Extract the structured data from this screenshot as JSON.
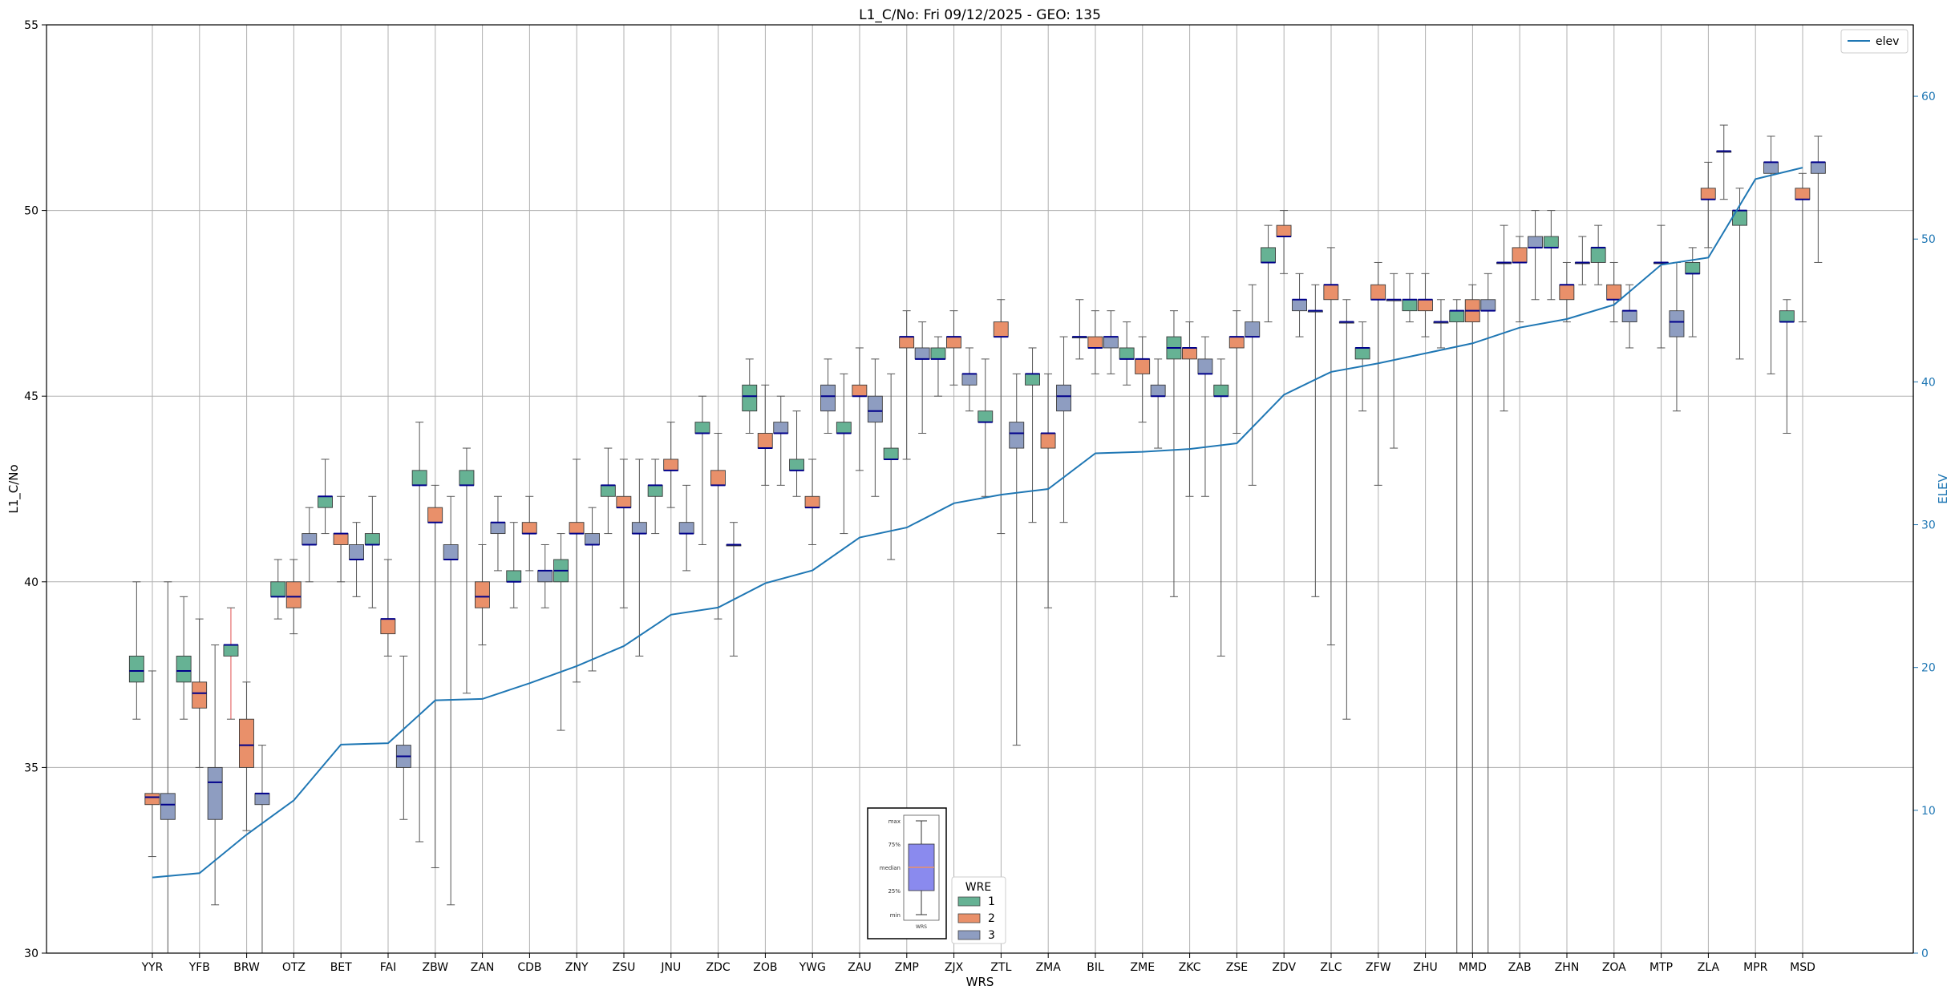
{
  "chart_data": {
    "type": "boxplot",
    "title": "L1_C/No: Fri 09/12/2025 - GEO: 135",
    "xlabel": "WRS",
    "ylabel": "L1_C/No",
    "ylabel_right": "ELEV",
    "ylim": [
      30,
      55
    ],
    "ylim_right": [
      0,
      65
    ],
    "yticks": [
      30,
      35,
      40,
      45,
      50,
      55
    ],
    "yticks_right": [
      0,
      10,
      20,
      30,
      40,
      50,
      60
    ],
    "grid": true,
    "categories": [
      "YYR",
      "YFB",
      "BRW",
      "OTZ",
      "BET",
      "FAI",
      "ZBW",
      "ZAN",
      "CDB",
      "ZNY",
      "ZSU",
      "JNU",
      "ZDC",
      "ZOB",
      "YWG",
      "ZAU",
      "ZMP",
      "ZJX",
      "ZTL",
      "ZMA",
      "BIL",
      "ZME",
      "ZKC",
      "ZSE",
      "ZDV",
      "ZLC",
      "ZFW",
      "ZHU",
      "MMD",
      "ZAB",
      "ZHN",
      "ZOA",
      "MTP",
      "ZLA",
      "MPR",
      "MSD"
    ],
    "wre_colors": {
      "1": "#66b294",
      "2": "#e9906a",
      "3": "#8e9dc1"
    },
    "median_color": "#00008b",
    "elev_color": "#1f77b4",
    "boxes": [
      {
        "site": "YYR",
        "wre": "1",
        "min": 36.3,
        "q1": 37.3,
        "median": 37.6,
        "q3": 38.0,
        "max": 40.0
      },
      {
        "site": "YYR",
        "wre": "2",
        "min": 32.6,
        "q1": 34.0,
        "median": 34.2,
        "q3": 34.3,
        "max": 37.6
      },
      {
        "site": "YYR",
        "wre": "3",
        "min": 30.0,
        "q1": 33.6,
        "median": 34.0,
        "q3": 34.3,
        "max": 40.0
      },
      {
        "site": "YFB",
        "wre": "1",
        "min": 36.3,
        "q1": 37.3,
        "median": 37.6,
        "q3": 38.0,
        "max": 39.6
      },
      {
        "site": "YFB",
        "wre": "2",
        "min": 35.0,
        "q1": 36.6,
        "median": 37.0,
        "q3": 37.3,
        "max": 39.0
      },
      {
        "site": "YFB",
        "wre": "3",
        "min": 31.3,
        "q1": 33.6,
        "median": 34.6,
        "q3": 35.0,
        "max": 38.3
      },
      {
        "site": "BRW",
        "wre": "1",
        "min": 36.3,
        "q1": 38.0,
        "median": 38.3,
        "q3": 38.3,
        "max": 39.3
      },
      {
        "site": "BRW",
        "wre": "2",
        "min": 33.3,
        "q1": 35.0,
        "median": 35.6,
        "q3": 36.3,
        "max": 37.3
      },
      {
        "site": "BRW",
        "wre": "3",
        "min": 30.0,
        "q1": 34.0,
        "median": 34.3,
        "q3": 34.3,
        "max": 35.6
      },
      {
        "site": "OTZ",
        "wre": "1",
        "min": 39.0,
        "q1": 39.6,
        "median": 39.6,
        "q3": 40.0,
        "max": 40.6
      },
      {
        "site": "OTZ",
        "wre": "2",
        "min": 38.6,
        "q1": 39.3,
        "median": 39.6,
        "q3": 40.0,
        "max": 40.6
      },
      {
        "site": "OTZ",
        "wre": "3",
        "min": 40.0,
        "q1": 41.0,
        "median": 41.0,
        "q3": 41.3,
        "max": 42.0
      },
      {
        "site": "BET",
        "wre": "1",
        "min": 41.3,
        "q1": 42.0,
        "median": 42.3,
        "q3": 42.3,
        "max": 43.3
      },
      {
        "site": "BET",
        "wre": "2",
        "min": 40.0,
        "q1": 41.0,
        "median": 41.3,
        "q3": 41.3,
        "max": 42.3
      },
      {
        "site": "BET",
        "wre": "3",
        "min": 39.6,
        "q1": 40.6,
        "median": 40.6,
        "q3": 41.0,
        "max": 41.6
      },
      {
        "site": "FAI",
        "wre": "1",
        "min": 39.3,
        "q1": 41.0,
        "median": 41.0,
        "q3": 41.3,
        "max": 42.3
      },
      {
        "site": "FAI",
        "wre": "2",
        "min": 38.0,
        "q1": 38.6,
        "median": 39.0,
        "q3": 39.0,
        "max": 40.6
      },
      {
        "site": "FAI",
        "wre": "3",
        "min": 33.6,
        "q1": 35.0,
        "median": 35.3,
        "q3": 35.6,
        "max": 38.0
      },
      {
        "site": "ZBW",
        "wre": "1",
        "min": 33.0,
        "q1": 42.6,
        "median": 42.6,
        "q3": 43.0,
        "max": 44.3
      },
      {
        "site": "ZBW",
        "wre": "2",
        "min": 32.3,
        "q1": 41.6,
        "median": 41.6,
        "q3": 42.0,
        "max": 42.6
      },
      {
        "site": "ZBW",
        "wre": "3",
        "min": 31.3,
        "q1": 40.6,
        "median": 40.6,
        "q3": 41.0,
        "max": 42.3
      },
      {
        "site": "ZAN",
        "wre": "1",
        "min": 37.0,
        "q1": 42.6,
        "median": 42.6,
        "q3": 43.0,
        "max": 43.6
      },
      {
        "site": "ZAN",
        "wre": "2",
        "min": 38.3,
        "q1": 39.3,
        "median": 39.6,
        "q3": 40.0,
        "max": 41.0
      },
      {
        "site": "ZAN",
        "wre": "3",
        "min": 40.3,
        "q1": 41.3,
        "median": 41.6,
        "q3": 41.6,
        "max": 42.3
      },
      {
        "site": "CDB",
        "wre": "1",
        "min": 39.3,
        "q1": 40.0,
        "median": 40.0,
        "q3": 40.3,
        "max": 41.6
      },
      {
        "site": "CDB",
        "wre": "2",
        "min": 40.3,
        "q1": 41.3,
        "median": 41.3,
        "q3": 41.6,
        "max": 42.3
      },
      {
        "site": "CDB",
        "wre": "3",
        "min": 39.3,
        "q1": 40.0,
        "median": 40.3,
        "q3": 40.3,
        "max": 41.0
      },
      {
        "site": "ZNY",
        "wre": "1",
        "min": 36.0,
        "q1": 40.0,
        "median": 40.3,
        "q3": 40.6,
        "max": 41.3
      },
      {
        "site": "ZNY",
        "wre": "2",
        "min": 37.3,
        "q1": 41.3,
        "median": 41.3,
        "q3": 41.6,
        "max": 43.3
      },
      {
        "site": "ZNY",
        "wre": "3",
        "min": 37.6,
        "q1": 41.0,
        "median": 41.0,
        "q3": 41.3,
        "max": 42.0
      },
      {
        "site": "ZSU",
        "wre": "1",
        "min": 41.3,
        "q1": 42.3,
        "median": 42.6,
        "q3": 42.6,
        "max": 43.6
      },
      {
        "site": "ZSU",
        "wre": "2",
        "min": 39.3,
        "q1": 42.0,
        "median": 42.0,
        "q3": 42.3,
        "max": 43.3
      },
      {
        "site": "ZSU",
        "wre": "3",
        "min": 38.0,
        "q1": 41.3,
        "median": 41.3,
        "q3": 41.6,
        "max": 43.3
      },
      {
        "site": "JNU",
        "wre": "1",
        "min": 41.3,
        "q1": 42.3,
        "median": 42.6,
        "q3": 42.6,
        "max": 43.3
      },
      {
        "site": "JNU",
        "wre": "2",
        "min": 42.0,
        "q1": 43.0,
        "median": 43.0,
        "q3": 43.3,
        "max": 44.3
      },
      {
        "site": "JNU",
        "wre": "3",
        "min": 40.3,
        "q1": 41.3,
        "median": 41.3,
        "q3": 41.6,
        "max": 42.6
      },
      {
        "site": "ZDC",
        "wre": "1",
        "min": 41.0,
        "q1": 44.0,
        "median": 44.0,
        "q3": 44.3,
        "max": 45.0
      },
      {
        "site": "ZDC",
        "wre": "2",
        "min": 39.0,
        "q1": 42.6,
        "median": 42.6,
        "q3": 43.0,
        "max": 44.0
      },
      {
        "site": "ZDC",
        "wre": "3",
        "min": 38.0,
        "q1": 41.0,
        "median": 41.0,
        "q3": 41.0,
        "max": 41.6
      },
      {
        "site": "ZOB",
        "wre": "1",
        "min": 44.0,
        "q1": 44.6,
        "median": 45.0,
        "q3": 45.3,
        "max": 46.0
      },
      {
        "site": "ZOB",
        "wre": "2",
        "min": 42.6,
        "q1": 43.6,
        "median": 43.6,
        "q3": 44.0,
        "max": 45.3
      },
      {
        "site": "ZOB",
        "wre": "3",
        "min": 42.6,
        "q1": 44.0,
        "median": 44.0,
        "q3": 44.3,
        "max": 45.0
      },
      {
        "site": "YWG",
        "wre": "1",
        "min": 42.3,
        "q1": 43.0,
        "median": 43.0,
        "q3": 43.3,
        "max": 44.6
      },
      {
        "site": "YWG",
        "wre": "2",
        "min": 41.0,
        "q1": 42.0,
        "median": 42.0,
        "q3": 42.3,
        "max": 43.3
      },
      {
        "site": "YWG",
        "wre": "3",
        "min": 44.0,
        "q1": 44.6,
        "median": 45.0,
        "q3": 45.3,
        "max": 46.0
      },
      {
        "site": "ZAU",
        "wre": "1",
        "min": 41.3,
        "q1": 44.0,
        "median": 44.0,
        "q3": 44.3,
        "max": 45.6
      },
      {
        "site": "ZAU",
        "wre": "2",
        "min": 43.0,
        "q1": 45.0,
        "median": 45.0,
        "q3": 45.3,
        "max": 46.3
      },
      {
        "site": "ZAU",
        "wre": "3",
        "min": 42.3,
        "q1": 44.3,
        "median": 44.6,
        "q3": 45.0,
        "max": 46.0
      },
      {
        "site": "ZMP",
        "wre": "1",
        "min": 40.6,
        "q1": 43.3,
        "median": 43.3,
        "q3": 43.6,
        "max": 45.6
      },
      {
        "site": "ZMP",
        "wre": "2",
        "min": 43.3,
        "q1": 46.3,
        "median": 46.6,
        "q3": 46.6,
        "max": 47.3
      },
      {
        "site": "ZMP",
        "wre": "3",
        "min": 44.0,
        "q1": 46.0,
        "median": 46.0,
        "q3": 46.3,
        "max": 47.0
      },
      {
        "site": "ZJX",
        "wre": "1",
        "min": 45.0,
        "q1": 46.0,
        "median": 46.0,
        "q3": 46.3,
        "max": 46.6
      },
      {
        "site": "ZJX",
        "wre": "2",
        "min": 45.3,
        "q1": 46.3,
        "median": 46.6,
        "q3": 46.6,
        "max": 47.3
      },
      {
        "site": "ZJX",
        "wre": "3",
        "min": 44.6,
        "q1": 45.3,
        "median": 45.6,
        "q3": 45.6,
        "max": 46.3
      },
      {
        "site": "ZTL",
        "wre": "1",
        "min": 42.3,
        "q1": 44.3,
        "median": 44.3,
        "q3": 44.6,
        "max": 46.0
      },
      {
        "site": "ZTL",
        "wre": "2",
        "min": 41.3,
        "q1": 46.6,
        "median": 46.6,
        "q3": 47.0,
        "max": 47.6
      },
      {
        "site": "ZTL",
        "wre": "3",
        "min": 35.6,
        "q1": 43.6,
        "median": 44.0,
        "q3": 44.3,
        "max": 45.6
      },
      {
        "site": "ZMA",
        "wre": "1",
        "min": 41.6,
        "q1": 45.3,
        "median": 45.6,
        "q3": 45.6,
        "max": 46.3
      },
      {
        "site": "ZMA",
        "wre": "2",
        "min": 39.3,
        "q1": 43.6,
        "median": 44.0,
        "q3": 44.0,
        "max": 45.6
      },
      {
        "site": "ZMA",
        "wre": "3",
        "min": 41.6,
        "q1": 44.6,
        "median": 45.0,
        "q3": 45.3,
        "max": 46.6
      },
      {
        "site": "BIL",
        "wre": "1",
        "min": 46.0,
        "q1": 46.6,
        "median": 46.6,
        "q3": 46.6,
        "max": 47.6
      },
      {
        "site": "BIL",
        "wre": "2",
        "min": 45.6,
        "q1": 46.3,
        "median": 46.3,
        "q3": 46.6,
        "max": 47.3
      },
      {
        "site": "BIL",
        "wre": "3",
        "min": 45.6,
        "q1": 46.3,
        "median": 46.6,
        "q3": 46.6,
        "max": 47.3
      },
      {
        "site": "ZME",
        "wre": "1",
        "min": 45.3,
        "q1": 46.0,
        "median": 46.0,
        "q3": 46.3,
        "max": 47.0
      },
      {
        "site": "ZME",
        "wre": "2",
        "min": 44.3,
        "q1": 45.6,
        "median": 46.0,
        "q3": 46.0,
        "max": 46.6
      },
      {
        "site": "ZME",
        "wre": "3",
        "min": 43.6,
        "q1": 45.0,
        "median": 45.0,
        "q3": 45.3,
        "max": 46.0
      },
      {
        "site": "ZKC",
        "wre": "1",
        "min": 39.6,
        "q1": 46.0,
        "median": 46.3,
        "q3": 46.6,
        "max": 47.3
      },
      {
        "site": "ZKC",
        "wre": "2",
        "min": 42.3,
        "q1": 46.0,
        "median": 46.3,
        "q3": 46.3,
        "max": 47.0
      },
      {
        "site": "ZKC",
        "wre": "3",
        "min": 42.3,
        "q1": 45.6,
        "median": 45.6,
        "q3": 46.0,
        "max": 46.6
      },
      {
        "site": "ZSE",
        "wre": "1",
        "min": 38.0,
        "q1": 45.0,
        "median": 45.0,
        "q3": 45.3,
        "max": 46.0
      },
      {
        "site": "ZSE",
        "wre": "2",
        "min": 44.0,
        "q1": 46.3,
        "median": 46.6,
        "q3": 46.6,
        "max": 47.3
      },
      {
        "site": "ZSE",
        "wre": "3",
        "min": 42.6,
        "q1": 46.6,
        "median": 46.6,
        "q3": 47.0,
        "max": 48.0
      },
      {
        "site": "ZDV",
        "wre": "1",
        "min": 47.0,
        "q1": 48.6,
        "median": 48.6,
        "q3": 49.0,
        "max": 49.6
      },
      {
        "site": "ZDV",
        "wre": "2",
        "min": 48.3,
        "q1": 49.3,
        "median": 49.3,
        "q3": 49.6,
        "max": 50.0
      },
      {
        "site": "ZDV",
        "wre": "3",
        "min": 46.6,
        "q1": 47.3,
        "median": 47.6,
        "q3": 47.6,
        "max": 48.3
      },
      {
        "site": "ZLC",
        "wre": "1",
        "min": 39.6,
        "q1": 47.3,
        "median": 47.3,
        "q3": 47.3,
        "max": 48.0
      },
      {
        "site": "ZLC",
        "wre": "2",
        "min": 38.3,
        "q1": 47.6,
        "median": 48.0,
        "q3": 48.0,
        "max": 49.0
      },
      {
        "site": "ZLC",
        "wre": "3",
        "min": 36.3,
        "q1": 47.0,
        "median": 47.0,
        "q3": 47.0,
        "max": 47.6
      },
      {
        "site": "ZFW",
        "wre": "1",
        "min": 44.6,
        "q1": 46.0,
        "median": 46.3,
        "q3": 46.3,
        "max": 47.0
      },
      {
        "site": "ZFW",
        "wre": "2",
        "min": 42.6,
        "q1": 47.6,
        "median": 47.6,
        "q3": 48.0,
        "max": 48.6
      },
      {
        "site": "ZFW",
        "wre": "3",
        "min": 43.6,
        "q1": 47.6,
        "median": 47.6,
        "q3": 47.6,
        "max": 48.3
      },
      {
        "site": "ZHU",
        "wre": "1",
        "min": 47.0,
        "q1": 47.3,
        "median": 47.6,
        "q3": 47.6,
        "max": 48.3
      },
      {
        "site": "ZHU",
        "wre": "2",
        "min": 46.6,
        "q1": 47.3,
        "median": 47.6,
        "q3": 47.6,
        "max": 48.3
      },
      {
        "site": "ZHU",
        "wre": "3",
        "min": 46.3,
        "q1": 47.0,
        "median": 47.0,
        "q3": 47.0,
        "max": 47.6
      },
      {
        "site": "MMD",
        "wre": "1",
        "min": 30.0,
        "q1": 47.0,
        "median": 47.3,
        "q3": 47.3,
        "max": 47.6
      },
      {
        "site": "MMD",
        "wre": "2",
        "min": 30.0,
        "q1": 47.0,
        "median": 47.3,
        "q3": 47.6,
        "max": 48.0
      },
      {
        "site": "MMD",
        "wre": "3",
        "min": 30.0,
        "q1": 47.3,
        "median": 47.3,
        "q3": 47.6,
        "max": 48.3
      },
      {
        "site": "ZAB",
        "wre": "1",
        "min": 44.6,
        "q1": 48.6,
        "median": 48.6,
        "q3": 48.6,
        "max": 49.6
      },
      {
        "site": "ZAB",
        "wre": "2",
        "min": 47.0,
        "q1": 48.6,
        "median": 48.6,
        "q3": 49.0,
        "max": 49.3
      },
      {
        "site": "ZAB",
        "wre": "3",
        "min": 47.6,
        "q1": 49.0,
        "median": 49.0,
        "q3": 49.3,
        "max": 50.0
      },
      {
        "site": "ZHN",
        "wre": "1",
        "min": 47.6,
        "q1": 49.0,
        "median": 49.0,
        "q3": 49.3,
        "max": 50.0
      },
      {
        "site": "ZHN",
        "wre": "2",
        "min": 47.0,
        "q1": 47.6,
        "median": 48.0,
        "q3": 48.0,
        "max": 48.6
      },
      {
        "site": "ZHN",
        "wre": "3",
        "min": 48.0,
        "q1": 48.6,
        "median": 48.6,
        "q3": 48.6,
        "max": 49.3
      },
      {
        "site": "ZOA",
        "wre": "1",
        "min": 48.0,
        "q1": 48.6,
        "median": 49.0,
        "q3": 49.0,
        "max": 49.6
      },
      {
        "site": "ZOA",
        "wre": "2",
        "min": 47.0,
        "q1": 47.6,
        "median": 47.6,
        "q3": 48.0,
        "max": 48.6
      },
      {
        "site": "ZOA",
        "wre": "3",
        "min": 46.3,
        "q1": 47.0,
        "median": 47.3,
        "q3": 47.3,
        "max": 48.0
      },
      {
        "site": "MTP",
        "wre": "2",
        "min": 46.3,
        "q1": 48.6,
        "median": 48.6,
        "q3": 48.6,
        "max": 49.6
      },
      {
        "site": "MTP",
        "wre": "3",
        "min": 44.6,
        "q1": 46.6,
        "median": 47.0,
        "q3": 47.3,
        "max": 48.6
      },
      {
        "site": "ZLA",
        "wre": "1",
        "min": 46.6,
        "q1": 48.3,
        "median": 48.3,
        "q3": 48.6,
        "max": 49.0
      },
      {
        "site": "ZLA",
        "wre": "2",
        "min": 49.0,
        "q1": 50.3,
        "median": 50.3,
        "q3": 50.6,
        "max": 51.3
      },
      {
        "site": "ZLA",
        "wre": "3",
        "min": 50.3,
        "q1": 51.6,
        "median": 51.6,
        "q3": 51.6,
        "max": 52.3
      },
      {
        "site": "MPR",
        "wre": "1",
        "min": 46.0,
        "q1": 49.6,
        "median": 50.0,
        "q3": 50.0,
        "max": 50.6
      },
      {
        "site": "MPR",
        "wre": "3",
        "min": 45.6,
        "q1": 51.0,
        "median": 51.3,
        "q3": 51.3,
        "max": 52.0
      },
      {
        "site": "MSD",
        "wre": "1",
        "min": 44.0,
        "q1": 47.0,
        "median": 47.0,
        "q3": 47.3,
        "max": 47.6
      },
      {
        "site": "MSD",
        "wre": "2",
        "min": 47.0,
        "q1": 50.3,
        "median": 50.3,
        "q3": 50.6,
        "max": 51.0
      },
      {
        "site": "MSD",
        "wre": "3",
        "min": 48.6,
        "q1": 51.0,
        "median": 51.3,
        "q3": 51.3,
        "max": 52.0
      }
    ],
    "elev_series": {
      "name": "elev",
      "values": [
        5.3,
        5.6,
        8.3,
        10.7,
        14.6,
        14.7,
        17.7,
        17.8,
        18.9,
        20.1,
        21.5,
        23.7,
        24.2,
        25.9,
        26.8,
        29.1,
        29.8,
        31.5,
        32.1,
        32.5,
        35.0,
        35.1,
        35.3,
        35.7,
        39.1,
        40.7,
        41.3,
        42.0,
        42.7,
        43.8,
        44.4,
        45.4,
        48.2,
        48.7,
        54.2,
        55.0
      ]
    },
    "legend_elev": {
      "label": "elev",
      "placement": "top-right"
    },
    "legend_wre": {
      "title": "WRE",
      "entries": [
        "1",
        "2",
        "3"
      ],
      "placement": "bottom-center"
    },
    "inset_key": {
      "labels": [
        "max",
        "75%",
        "median",
        "25%",
        "min"
      ],
      "xlabel": "WRS"
    }
  }
}
